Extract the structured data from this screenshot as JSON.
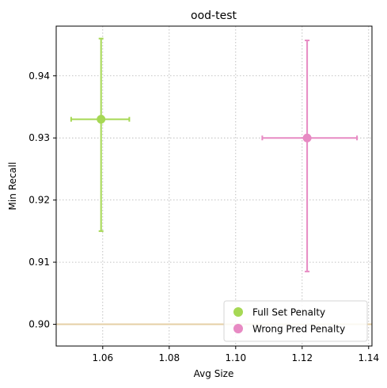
{
  "chart_data": {
    "type": "scatter",
    "title": "ood-test",
    "xlabel": "Avg Size",
    "ylabel": "Min Recall",
    "xlim": [
      1.046,
      1.141
    ],
    "ylim": [
      0.8965,
      0.948
    ],
    "xticks": [
      1.06,
      1.08,
      1.1,
      1.12,
      1.14
    ],
    "xtick_labels": [
      "1.06",
      "1.08",
      "1.10",
      "1.12",
      "1.14"
    ],
    "yticks": [
      0.9,
      0.91,
      0.92,
      0.93,
      0.94
    ],
    "ytick_labels": [
      "0.90",
      "0.91",
      "0.92",
      "0.93",
      "0.94"
    ],
    "grid": true,
    "legend_position": "bottom-right",
    "reference_line": {
      "y": 0.9,
      "color": "#e5cfa5"
    },
    "series": [
      {
        "name": "Full Set Penalty",
        "color": "#a6d854",
        "x": 1.0595,
        "y": 0.933,
        "x_err": [
          1.0505,
          1.068
        ],
        "y_err": [
          0.915,
          0.946
        ]
      },
      {
        "name": "Wrong Pred Penalty",
        "color": "#e78ac3",
        "x": 1.1215,
        "y": 0.93,
        "x_err": [
          1.108,
          1.1365
        ],
        "y_err": [
          0.9085,
          0.9457
        ]
      }
    ]
  }
}
